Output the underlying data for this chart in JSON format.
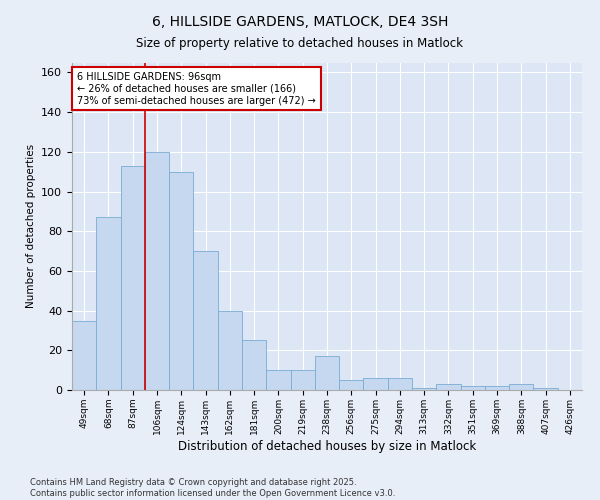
{
  "title": "6, HILLSIDE GARDENS, MATLOCK, DE4 3SH",
  "subtitle": "Size of property relative to detached houses in Matlock",
  "xlabel": "Distribution of detached houses by size in Matlock",
  "ylabel": "Number of detached properties",
  "categories": [
    "49sqm",
    "68sqm",
    "87sqm",
    "106sqm",
    "124sqm",
    "143sqm",
    "162sqm",
    "181sqm",
    "200sqm",
    "219sqm",
    "238sqm",
    "256sqm",
    "275sqm",
    "294sqm",
    "313sqm",
    "332sqm",
    "351sqm",
    "369sqm",
    "388sqm",
    "407sqm",
    "426sqm"
  ],
  "values": [
    35,
    87,
    113,
    120,
    110,
    70,
    40,
    25,
    10,
    10,
    17,
    5,
    6,
    6,
    1,
    3,
    2,
    2,
    3,
    1,
    0
  ],
  "bar_color": "#c5d8f0",
  "bar_edge_color": "#7aabd4",
  "vline_x": 2.5,
  "vline_color": "#cc0000",
  "annotation_title": "6 HILLSIDE GARDENS: 96sqm",
  "annotation_line2": "← 26% of detached houses are smaller (166)",
  "annotation_line3": "73% of semi-detached houses are larger (472) →",
  "annotation_box_color": "#cc0000",
  "ylim": [
    0,
    165
  ],
  "yticks": [
    0,
    20,
    40,
    60,
    80,
    100,
    120,
    140,
    160
  ],
  "background_color": "#dce6f5",
  "fig_background_color": "#e8eef8",
  "grid_color": "#ffffff",
  "footer_line1": "Contains HM Land Registry data © Crown copyright and database right 2025.",
  "footer_line2": "Contains public sector information licensed under the Open Government Licence v3.0."
}
